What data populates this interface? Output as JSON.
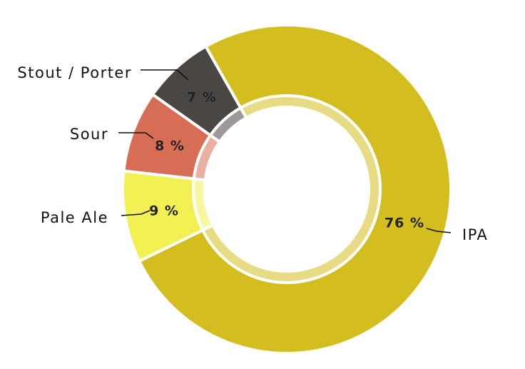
{
  "chart_data": {
    "type": "donut",
    "categories": [
      "IPA",
      "Pale Ale",
      "Sour",
      "Stout / Porter"
    ],
    "values": [
      76,
      9,
      8,
      7
    ],
    "value_labels": [
      "76 %",
      "9 %",
      "8 %",
      "7 %"
    ],
    "colors": [
      "#d4bd1f",
      "#f3f053",
      "#d86d55",
      "#4a4644"
    ]
  }
}
